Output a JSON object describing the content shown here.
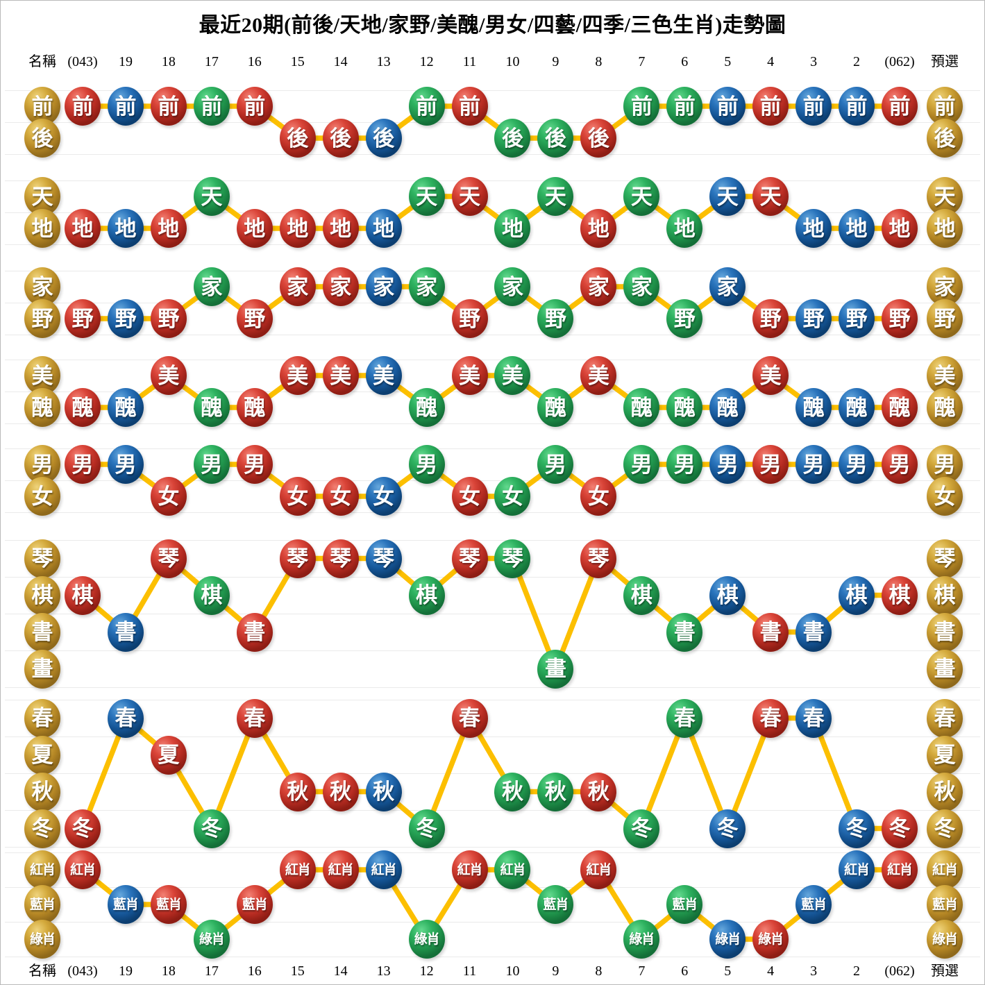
{
  "title": "最近20期(前後/天地/家野/美醜/男女/四藝/四季/三色生肖)走勢圖",
  "columns": {
    "name_label": "名稱",
    "periods": [
      "(043)",
      "19",
      "18",
      "17",
      "16",
      "15",
      "14",
      "13",
      "12",
      "11",
      "10",
      "9",
      "8",
      "7",
      "6",
      "5",
      "4",
      "3",
      "2",
      "(062)"
    ],
    "preselect_label": "預選"
  },
  "colors": {
    "red": "#cb3a30",
    "blue": "#1963ae",
    "green": "#2bb05c",
    "gold": "#cfa42f",
    "line": "#fcbf00",
    "gridline": "#eaeaea",
    "ball_text": "#ffffff",
    "text": "#000000"
  },
  "chart_data": {
    "type": "line",
    "title": "最近20期(前後/天地/家野/美醜/男女/四藝/四季/三色生肖)走勢圖",
    "x_categories": [
      "(043)",
      "19",
      "18",
      "17",
      "16",
      "15",
      "14",
      "13",
      "12",
      "11",
      "10",
      "9",
      "8",
      "7",
      "6",
      "5",
      "4",
      "3",
      "2",
      "(062)"
    ],
    "legend_note_left_column": "名稱",
    "legend_note_right_column": "預選",
    "ball_colors": [
      "red",
      "blue",
      "red",
      "green",
      "red",
      "red",
      "red",
      "blue",
      "green",
      "red",
      "green",
      "green",
      "red",
      "green",
      "green",
      "blue",
      "red",
      "blue",
      "blue",
      "red"
    ],
    "sections": [
      {
        "name": "前後",
        "levels": [
          "前",
          "後"
        ],
        "point_levels": [
          0,
          0,
          0,
          0,
          0,
          1,
          1,
          1,
          0,
          0,
          1,
          1,
          1,
          0,
          0,
          0,
          0,
          0,
          0,
          0
        ]
      },
      {
        "name": "天地",
        "levels": [
          "天",
          "地"
        ],
        "point_levels": [
          1,
          1,
          1,
          0,
          1,
          1,
          1,
          1,
          0,
          0,
          1,
          0,
          1,
          0,
          1,
          0,
          0,
          1,
          1,
          1
        ]
      },
      {
        "name": "家野",
        "levels": [
          "家",
          "野"
        ],
        "point_levels": [
          1,
          1,
          1,
          0,
          1,
          0,
          0,
          0,
          0,
          1,
          0,
          1,
          0,
          0,
          1,
          0,
          1,
          1,
          1,
          1
        ]
      },
      {
        "name": "美醜",
        "levels": [
          "美",
          "醜"
        ],
        "point_levels": [
          1,
          1,
          0,
          1,
          1,
          0,
          0,
          0,
          1,
          0,
          0,
          1,
          0,
          1,
          1,
          1,
          0,
          1,
          1,
          1
        ]
      },
      {
        "name": "男女",
        "levels": [
          "男",
          "女"
        ],
        "point_levels": [
          0,
          0,
          1,
          0,
          0,
          1,
          1,
          1,
          0,
          1,
          1,
          0,
          1,
          0,
          0,
          0,
          0,
          0,
          0,
          0
        ]
      },
      {
        "name": "四藝",
        "levels": [
          "琴",
          "棋",
          "書",
          "畫"
        ],
        "point_levels": [
          1,
          2,
          0,
          1,
          2,
          0,
          0,
          0,
          1,
          0,
          0,
          3,
          0,
          1,
          2,
          1,
          2,
          2,
          1,
          1
        ]
      },
      {
        "name": "四季",
        "levels": [
          "春",
          "夏",
          "秋",
          "冬"
        ],
        "point_levels": [
          3,
          0,
          1,
          3,
          0,
          2,
          2,
          2,
          3,
          0,
          2,
          2,
          2,
          3,
          0,
          3,
          0,
          0,
          3,
          3
        ]
      },
      {
        "name": "三色生肖",
        "levels": [
          "紅肖",
          "藍肖",
          "綠肖"
        ],
        "point_levels": [
          0,
          1,
          1,
          2,
          1,
          0,
          0,
          0,
          2,
          0,
          0,
          1,
          0,
          2,
          1,
          2,
          2,
          1,
          0,
          0
        ]
      }
    ]
  }
}
